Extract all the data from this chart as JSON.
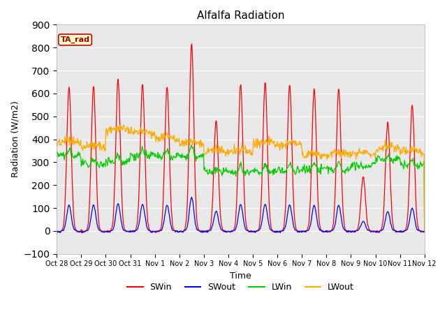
{
  "title": "Alfalfa Radiation",
  "ylabel": "Radiation (W/m2)",
  "xlabel": "Time",
  "ylim": [
    -100,
    900
  ],
  "yticks": [
    -100,
    0,
    100,
    200,
    300,
    400,
    500,
    600,
    700,
    800,
    900
  ],
  "fig_bg_color": "#ffffff",
  "plot_bg_color": "#e8e8e8",
  "legend_labels": [
    "SWin",
    "SWout",
    "LWin",
    "LWout"
  ],
  "legend_colors": [
    "#ff0000",
    "#0000ff",
    "#00cc00",
    "#ffaa00"
  ],
  "annotation_text": "TA_rad",
  "annotation_bg": "#ffffcc",
  "annotation_border": "#cc0000",
  "xtick_labels": [
    "Oct 28",
    "Oct 29",
    "Oct 30",
    "Oct 31",
    "Nov 1",
    "Nov 2",
    "Nov 3",
    "Nov 4",
    "Nov 5",
    "Nov 6",
    "Nov 7",
    "Nov 8",
    "Nov 9",
    "Nov 10",
    "Nov 11",
    "Nov 12"
  ],
  "n_days": 15,
  "seed": 42
}
